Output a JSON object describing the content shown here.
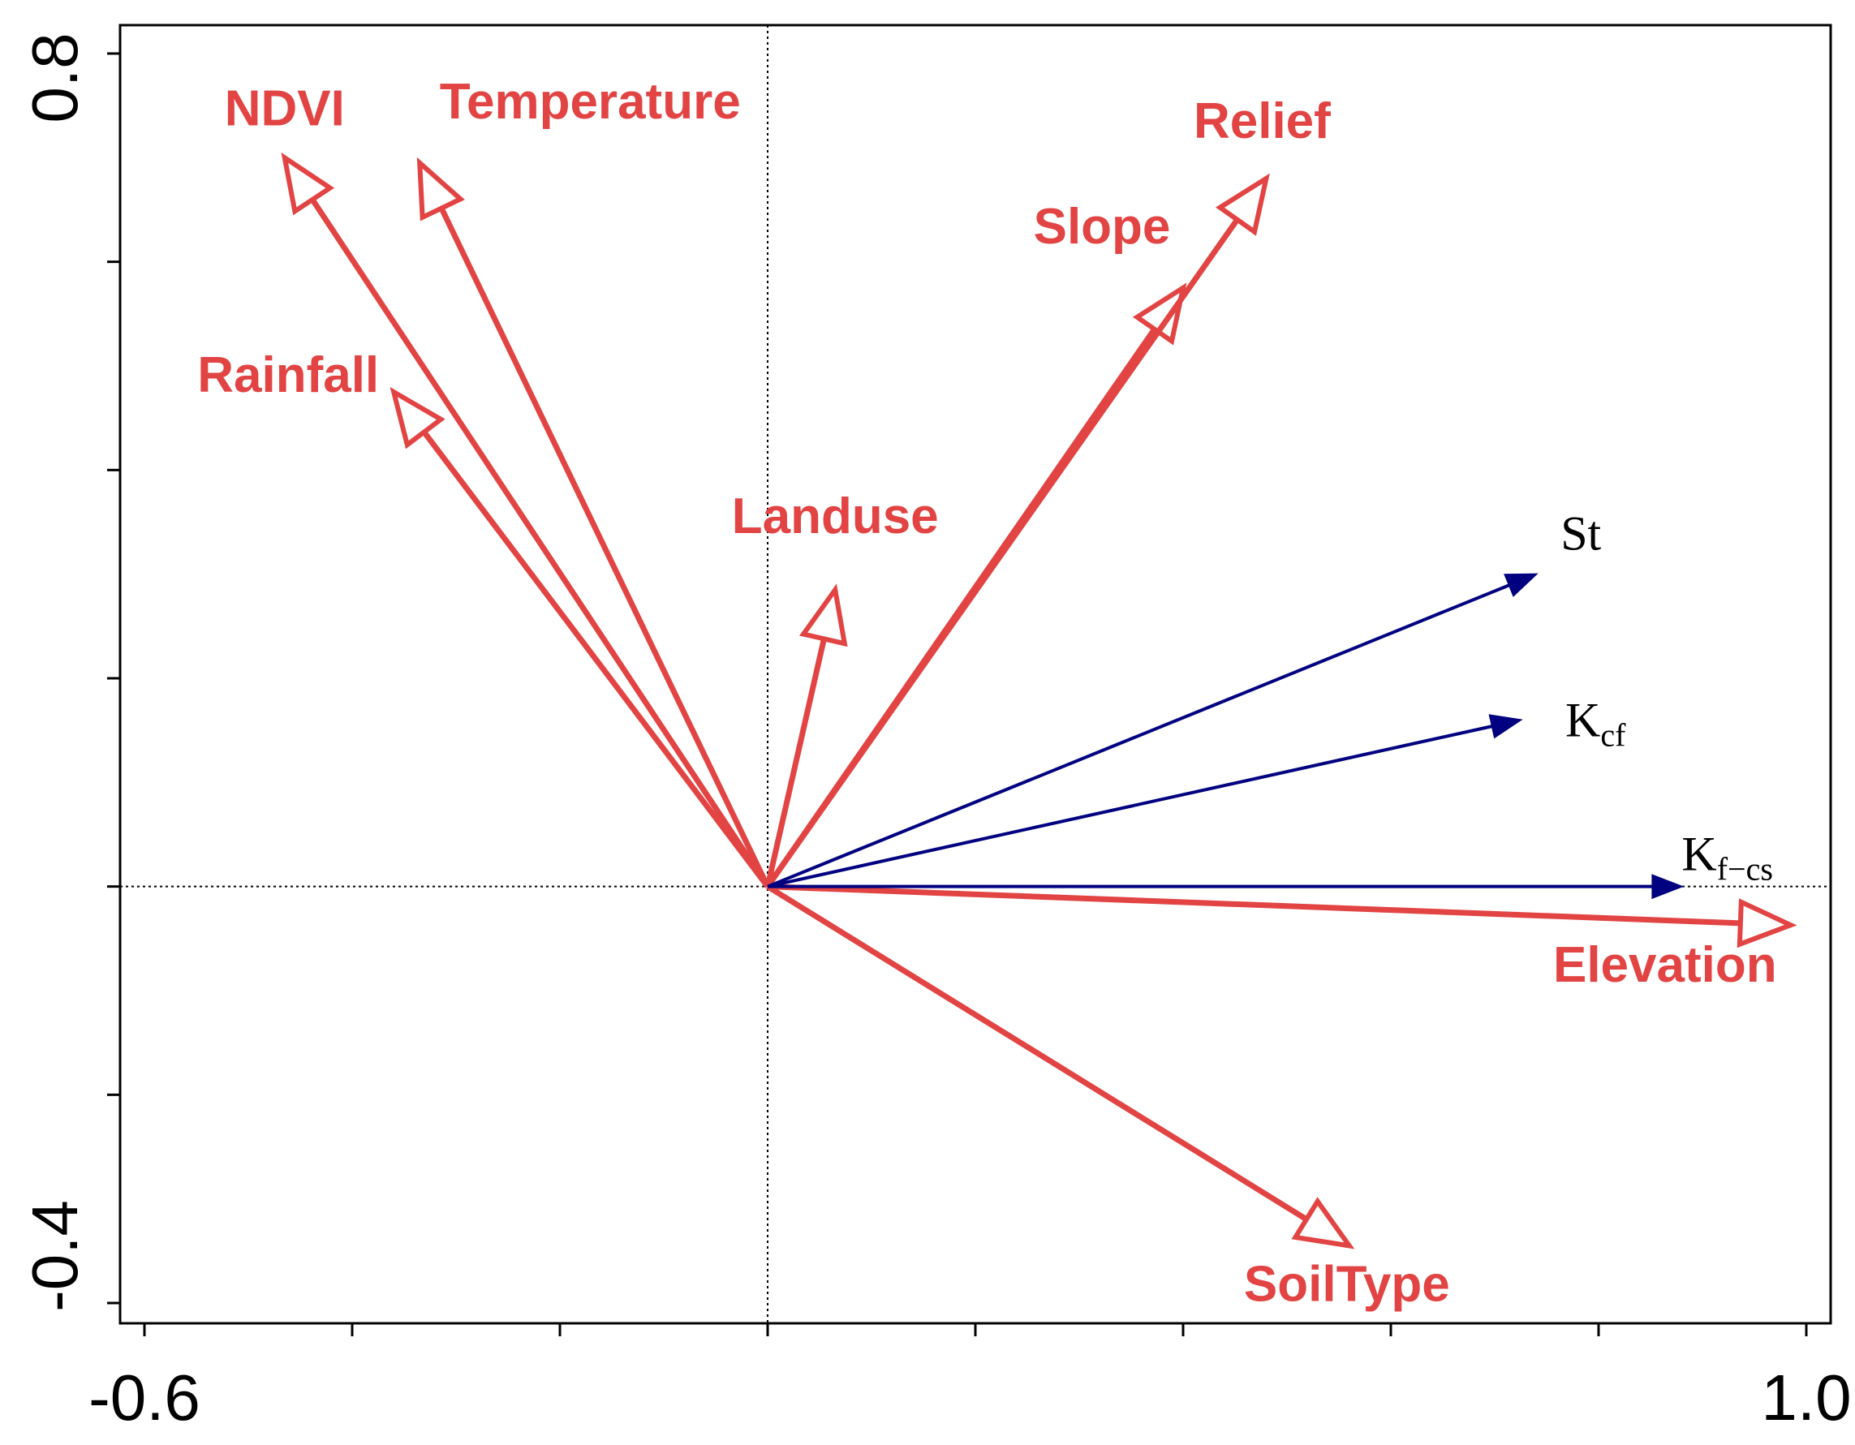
{
  "chart_data": {
    "type": "biplot",
    "title": "",
    "xlim": [
      -0.6,
      1.0
    ],
    "ylim": [
      -0.4,
      0.8
    ],
    "x_tick_labels": [
      "-0.6",
      "1.0"
    ],
    "y_tick_labels": [
      "0.8",
      "-0.4"
    ],
    "x_minor_ticks": [
      -0.6,
      -0.4,
      -0.2,
      0.0,
      0.2,
      0.4,
      0.6,
      0.8,
      1.0
    ],
    "y_minor_ticks": [
      -0.4,
      -0.2,
      0.0,
      0.2,
      0.4,
      0.6,
      0.8
    ],
    "origin": [
      0,
      0
    ],
    "colors": {
      "environmental": "#e24343",
      "response": "#000080",
      "axis": "#000000"
    },
    "environmental_variables": [
      {
        "name": "NDVI",
        "x": -0.465,
        "y": 0.7
      },
      {
        "name": "Temperature",
        "x": -0.335,
        "y": 0.695
      },
      {
        "name": "Rainfall",
        "x": -0.36,
        "y": 0.475
      },
      {
        "name": "Landuse",
        "x": 0.065,
        "y": 0.285
      },
      {
        "name": "Slope",
        "x": 0.4,
        "y": 0.575
      },
      {
        "name": "Relief",
        "x": 0.48,
        "y": 0.68
      },
      {
        "name": "Elevation",
        "x": 0.985,
        "y": -0.037
      },
      {
        "name": "SoilType",
        "x": 0.56,
        "y": -0.345
      }
    ],
    "response_variables": [
      {
        "name": "St",
        "base": "St",
        "sub": "",
        "x": 0.74,
        "y": 0.3
      },
      {
        "name": "Kcf",
        "base": "K",
        "sub": "cf",
        "x": 0.725,
        "y": 0.16
      },
      {
        "name": "Kf-cs",
        "base": "K",
        "sub": "f−cs",
        "x": 0.88,
        "y": 0.0
      }
    ]
  }
}
